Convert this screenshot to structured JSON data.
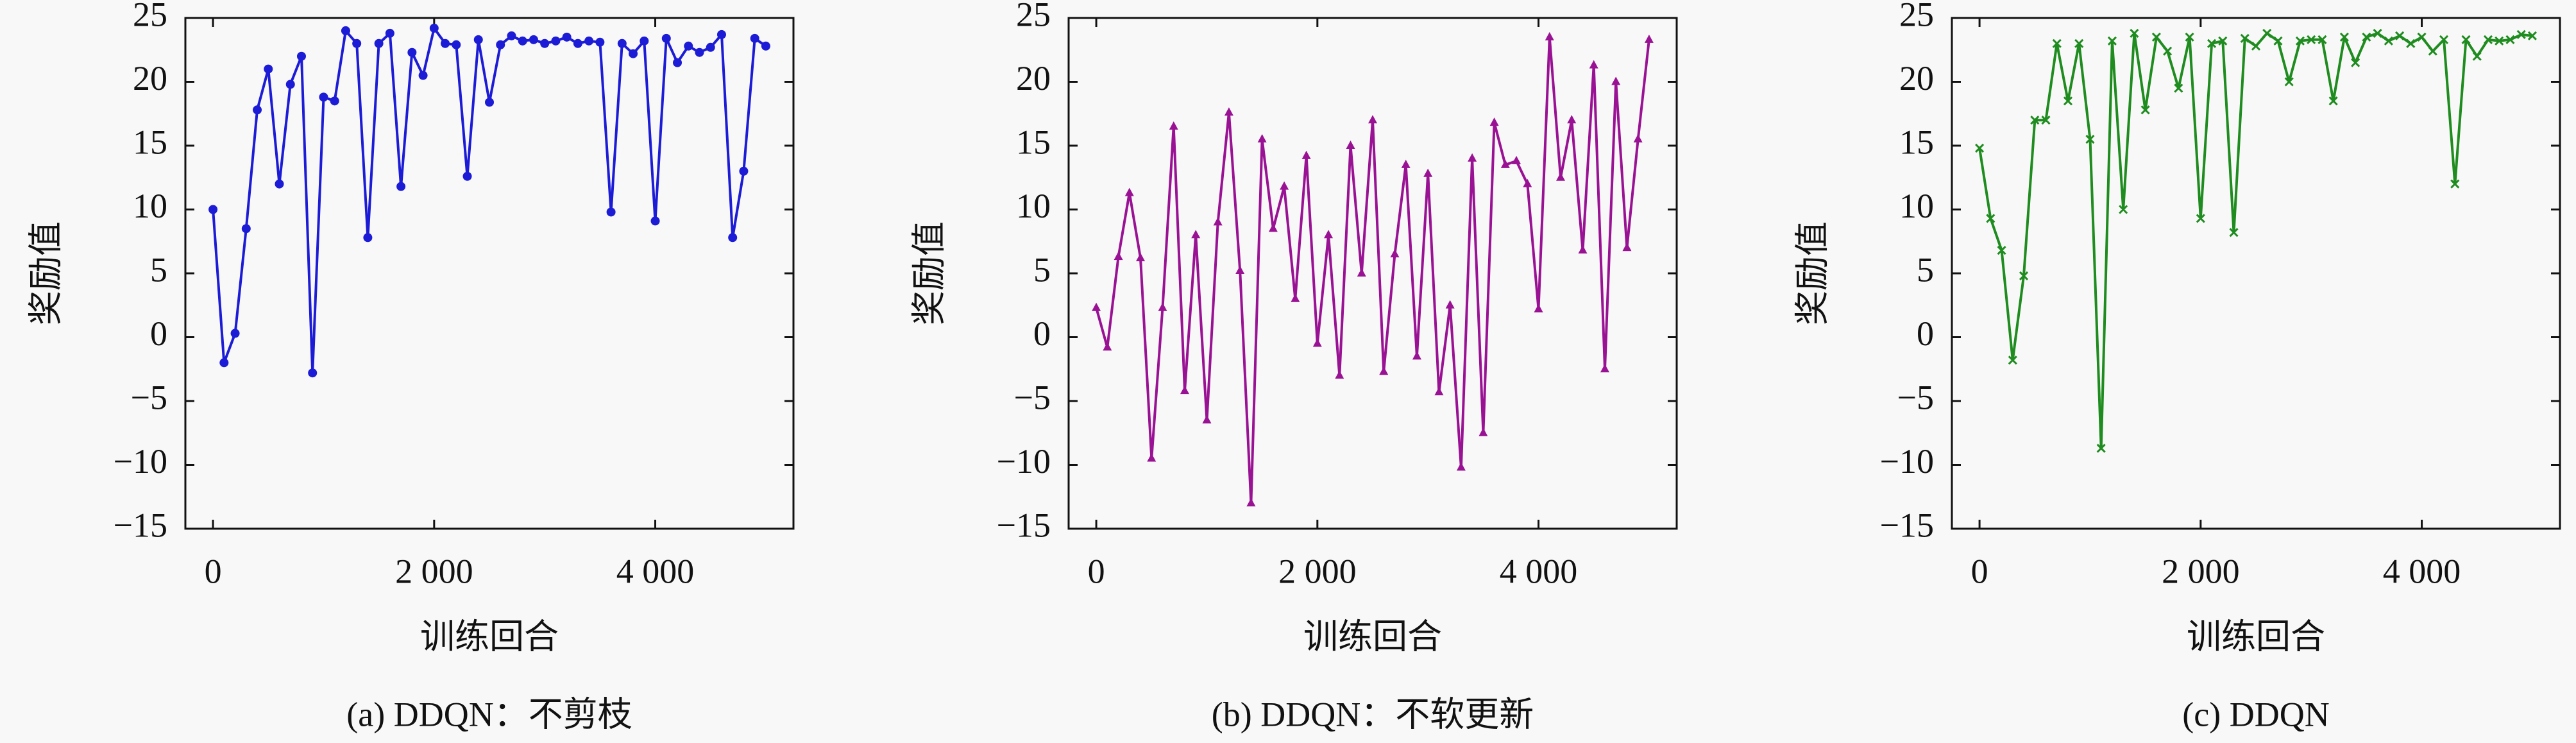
{
  "chart_data": [
    {
      "type": "line",
      "title": "(a) DDQN：不剪枝",
      "xlabel": "训练回合",
      "ylabel": "奖励值",
      "color": "#1c1cd6",
      "marker": "circle",
      "xlim": [
        -250,
        5250
      ],
      "ylim": [
        -15,
        25
      ],
      "xticks": [
        0,
        {
          "value": 2000,
          "label": "2 000"
        },
        {
          "value": 4000,
          "label": "4 000"
        }
      ],
      "yticks": [
        {
          "value": -15,
          "label": "−15"
        },
        {
          "value": -10,
          "label": "−10"
        },
        {
          "value": -5,
          "label": "−5"
        },
        0,
        5,
        10,
        15,
        20,
        25
      ],
      "x": [
        0,
        100,
        200,
        300,
        400,
        500,
        600,
        700,
        800,
        900,
        1000,
        1100,
        1200,
        1300,
        1400,
        1500,
        1600,
        1700,
        1800,
        1900,
        2000,
        2100,
        2200,
        2300,
        2400,
        2500,
        2600,
        2700,
        2800,
        2900,
        3000,
        3100,
        3200,
        3300,
        3400,
        3500,
        3600,
        3700,
        3800,
        3900,
        4000,
        4100,
        4200,
        4300,
        4400,
        4500,
        4600,
        4700,
        4800,
        4900,
        5000
      ],
      "values": [
        10,
        -2,
        0.3,
        8.5,
        17.8,
        21,
        12,
        19.8,
        22,
        -2.8,
        18.8,
        18.5,
        24,
        23,
        7.8,
        23,
        23.8,
        11.8,
        22.3,
        20.5,
        24.2,
        23,
        22.9,
        12.6,
        23.3,
        18.4,
        22.9,
        23.6,
        23.2,
        23.3,
        23,
        23.2,
        23.5,
        23,
        23.2,
        23.1,
        9.8,
        23,
        22.2,
        23.2,
        9.1,
        23.4,
        21.5,
        22.8,
        22.3,
        22.7,
        23.7,
        7.8,
        13,
        23.4,
        22.8
      ]
    },
    {
      "type": "line",
      "title": "(b) DDQN：不软更新",
      "xlabel": "训练回合",
      "ylabel": "奖励值",
      "color": "#9a1294",
      "marker": "triangle",
      "xlim": [
        -250,
        5250
      ],
      "ylim": [
        -15,
        25
      ],
      "xticks": [
        0,
        {
          "value": 2000,
          "label": "2 000"
        },
        {
          "value": 4000,
          "label": "4 000"
        }
      ],
      "yticks": [
        {
          "value": -15,
          "label": "−15"
        },
        {
          "value": -10,
          "label": "−10"
        },
        {
          "value": -5,
          "label": "−5"
        },
        0,
        5,
        10,
        15,
        20,
        25
      ],
      "x": [
        0,
        100,
        200,
        300,
        400,
        500,
        600,
        700,
        800,
        900,
        1000,
        1100,
        1200,
        1300,
        1400,
        1500,
        1600,
        1700,
        1800,
        1900,
        2000,
        2100,
        2200,
        2300,
        2400,
        2500,
        2600,
        2700,
        2800,
        2900,
        3000,
        3100,
        3200,
        3300,
        3400,
        3500,
        3600,
        3700,
        3800,
        3900,
        4000,
        4100,
        4200,
        4300,
        4400,
        4500,
        4600,
        4700,
        4800,
        4900,
        5000
      ],
      "values": [
        2.3,
        -0.8,
        6.3,
        11.3,
        6.2,
        -9.5,
        2.3,
        16.5,
        -4.2,
        8,
        -6.5,
        9,
        17.6,
        5.2,
        -13,
        15.5,
        8.5,
        11.8,
        3,
        14.2,
        -0.5,
        8,
        -3,
        15,
        5,
        17,
        -2.7,
        6.5,
        13.5,
        -1.5,
        12.8,
        -4.3,
        2.5,
        -10.2,
        14,
        -7.5,
        16.8,
        13.5,
        13.8,
        12,
        2.2,
        23.5,
        12.5,
        17,
        6.8,
        21.3,
        -2.5,
        20,
        7,
        15.5,
        23.3
      ]
    },
    {
      "type": "line",
      "title": "(c) DDQN",
      "xlabel": "训练回合",
      "ylabel": "奖励值",
      "color": "#1e8c1e",
      "marker": "cross",
      "xlim": [
        -250,
        5250
      ],
      "ylim": [
        -15,
        25
      ],
      "xticks": [
        0,
        {
          "value": 2000,
          "label": "2 000"
        },
        {
          "value": 4000,
          "label": "4 000"
        }
      ],
      "yticks": [
        {
          "value": -15,
          "label": "−15"
        },
        {
          "value": -10,
          "label": "−10"
        },
        {
          "value": -5,
          "label": "−5"
        },
        0,
        5,
        10,
        15,
        20,
        25
      ],
      "x": [
        0,
        100,
        200,
        300,
        400,
        500,
        600,
        700,
        800,
        900,
        1000,
        1100,
        1200,
        1300,
        1400,
        1500,
        1600,
        1700,
        1800,
        1900,
        2000,
        2100,
        2200,
        2300,
        2400,
        2500,
        2600,
        2700,
        2800,
        2900,
        3000,
        3100,
        3200,
        3300,
        3400,
        3500,
        3600,
        3700,
        3800,
        3900,
        4000,
        4100,
        4200,
        4300,
        4400,
        4500,
        4600,
        4700,
        4800,
        4900,
        5000
      ],
      "values": [
        14.8,
        9.3,
        6.8,
        -1.8,
        4.8,
        17,
        17,
        23,
        18.5,
        23,
        15.5,
        -8.7,
        23.2,
        10,
        23.8,
        17.8,
        23.5,
        22.4,
        19.5,
        23.5,
        9.3,
        23,
        23.2,
        8.2,
        23.4,
        22.8,
        23.8,
        23.2,
        20,
        23.2,
        23.3,
        23.3,
        18.5,
        23.5,
        21.5,
        23.5,
        23.8,
        23.2,
        23.6,
        23,
        23.5,
        22.4,
        23.3,
        12,
        23.3,
        22,
        23.3,
        23.2,
        23.3,
        23.7,
        23.6
      ]
    }
  ]
}
